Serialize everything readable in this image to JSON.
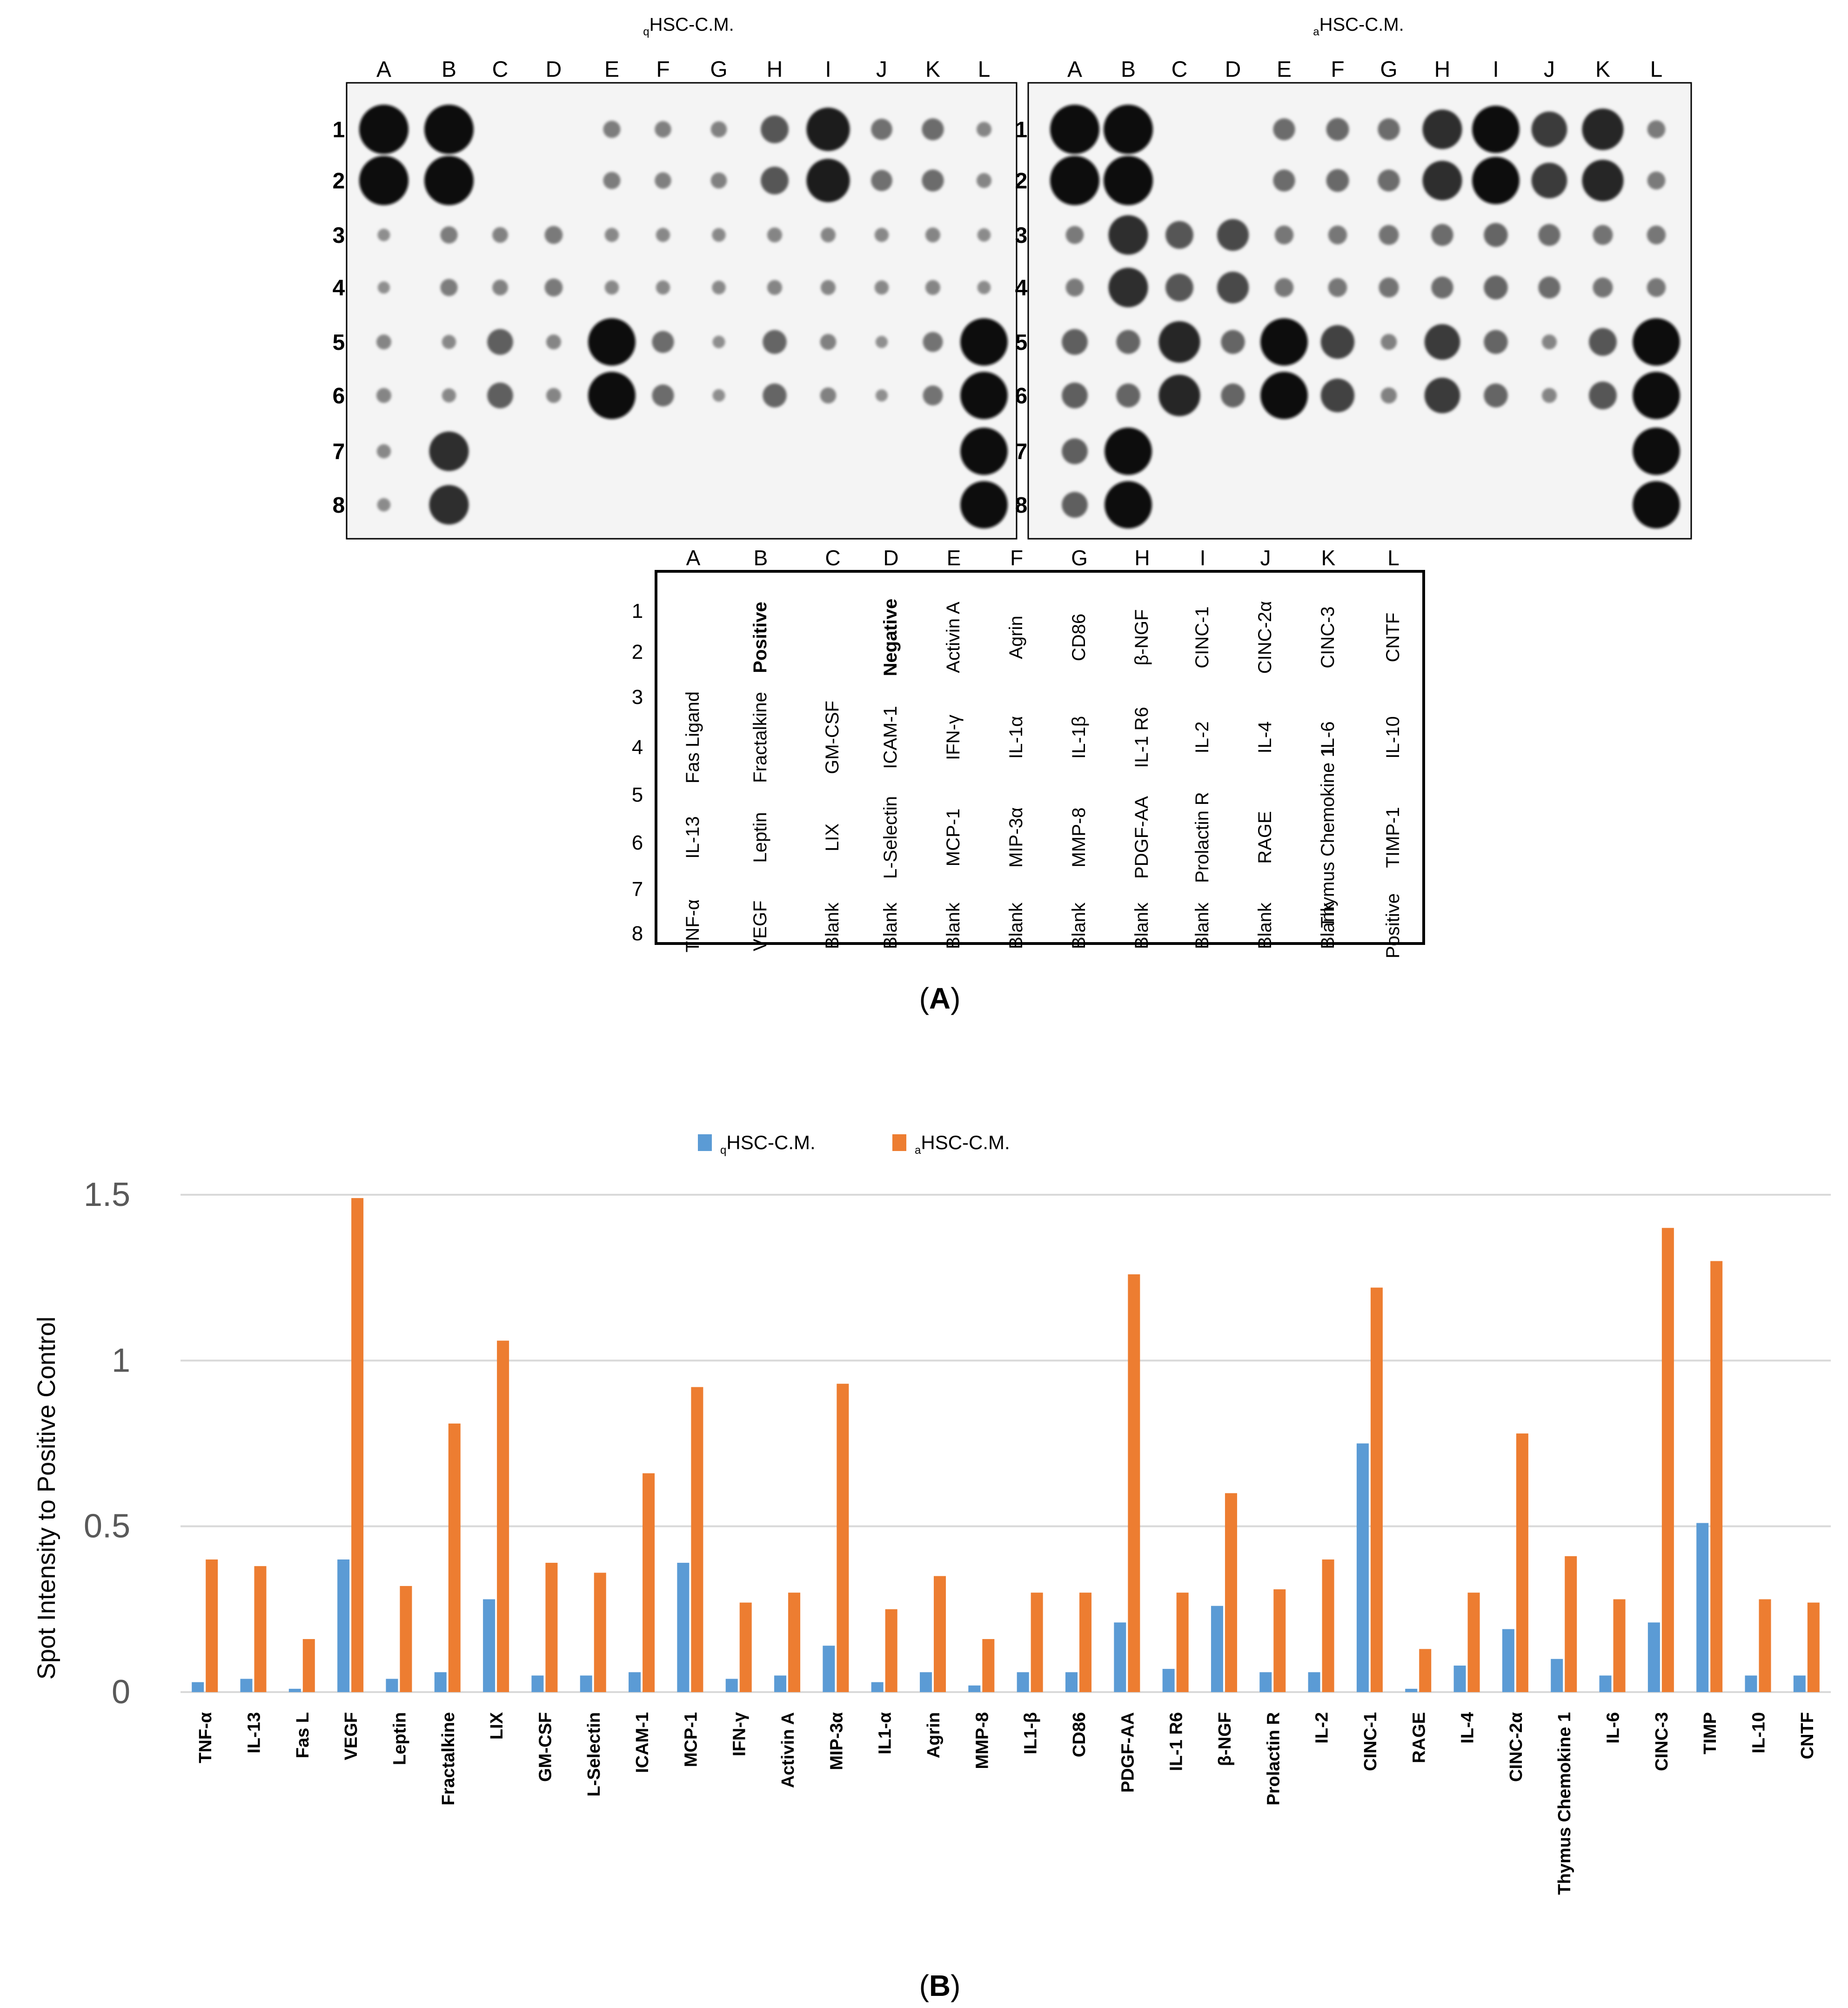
{
  "panel_a": {
    "panel_label": "A",
    "blots": [
      {
        "title": {
          "prefix": "q",
          "text": "HSC-C.M."
        }
      },
      {
        "title": {
          "prefix": "a",
          "text": "HSC-C.M."
        }
      }
    ],
    "column_letters": [
      "A",
      "B",
      "C",
      "D",
      "E",
      "F",
      "G",
      "H",
      "I",
      "J",
      "K",
      "L"
    ],
    "row_numbers": [
      "1",
      "2",
      "3",
      "4",
      "5",
      "6",
      "7",
      "8"
    ],
    "layout_map": {
      "column_letters": [
        "A",
        "B",
        "C",
        "D",
        "E",
        "F",
        "G",
        "H",
        "I",
        "J",
        "K",
        "L"
      ],
      "row_numbers": [
        "1",
        "2",
        "3",
        "4",
        "5",
        "6",
        "7",
        "8"
      ],
      "columns": [
        {
          "letter": "A",
          "labels": [
            "",
            "Fas Ligand",
            "IL-13",
            "TNF-α"
          ]
        },
        {
          "letter": "B",
          "labels": [
            "Positive",
            "Fractalkine",
            "Leptin",
            "VEGF"
          ]
        },
        {
          "letter": "C",
          "labels": [
            "",
            "GM-CSF",
            "LIX",
            "Blank"
          ]
        },
        {
          "letter": "D",
          "labels": [
            "Negative",
            "ICAM-1",
            "L-Selectin",
            "Blank"
          ]
        },
        {
          "letter": "E",
          "labels": [
            "Activin A",
            "IFN-γ",
            "MCP-1",
            "Blank"
          ]
        },
        {
          "letter": "F",
          "labels": [
            "Agrin",
            "IL-1α",
            "MIP-3α",
            "Blank"
          ]
        },
        {
          "letter": "G",
          "labels": [
            "CD86",
            "IL-1β",
            "MMP-8",
            "Blank"
          ]
        },
        {
          "letter": "H",
          "labels": [
            "β-NGF",
            "IL-1 R6",
            "PDGF-AA",
            "Blank"
          ]
        },
        {
          "letter": "I",
          "labels": [
            "CINC-1",
            "IL-2",
            "Prolactin R",
            "Blank"
          ]
        },
        {
          "letter": "J",
          "labels": [
            "CINC-2α",
            "IL-4",
            "RAGE",
            "Blank"
          ]
        },
        {
          "letter": "K",
          "labels": [
            "CINC-3",
            "IL-6",
            "Thymus Chemokine 1",
            "Blank"
          ]
        },
        {
          "letter": "L",
          "labels": [
            "CNTF",
            "IL-10",
            "TIMP-1",
            "Positive"
          ]
        }
      ]
    },
    "spot_intensity": {
      "qHSC": [
        [
          1.0,
          1.0,
          0,
          0,
          0.18,
          0.16,
          0.15,
          0.45,
          0.85,
          0.28,
          0.3,
          0.12
        ],
        [
          1.0,
          1.0,
          0,
          0,
          0.18,
          0.16,
          0.15,
          0.45,
          0.85,
          0.28,
          0.3,
          0.12
        ],
        [
          0.06,
          0.18,
          0.14,
          0.2,
          0.1,
          0.1,
          0.09,
          0.12,
          0.12,
          0.1,
          0.12,
          0.08
        ],
        [
          0.05,
          0.18,
          0.14,
          0.2,
          0.1,
          0.1,
          0.09,
          0.12,
          0.12,
          0.1,
          0.12,
          0.08
        ],
        [
          0.12,
          0.1,
          0.4,
          0.12,
          0.95,
          0.3,
          0.06,
          0.35,
          0.15,
          0.05,
          0.25,
          0.95
        ],
        [
          0.12,
          0.1,
          0.4,
          0.12,
          0.95,
          0.3,
          0.06,
          0.35,
          0.15,
          0.05,
          0.25,
          0.95
        ],
        [
          0.1,
          0.75,
          0,
          0,
          0,
          0,
          0,
          0,
          0,
          0,
          0,
          0.95
        ],
        [
          0.08,
          0.75,
          0,
          0,
          0,
          0,
          0,
          0,
          0,
          0,
          0,
          0.95
        ]
      ],
      "aHSC": [
        [
          1.0,
          1.0,
          0,
          0,
          0.3,
          0.32,
          0.3,
          0.75,
          0.95,
          0.65,
          0.8,
          0.2
        ],
        [
          1.0,
          1.0,
          0,
          0,
          0.3,
          0.32,
          0.3,
          0.75,
          0.95,
          0.65,
          0.8,
          0.2
        ],
        [
          0.2,
          0.75,
          0.45,
          0.55,
          0.22,
          0.22,
          0.25,
          0.3,
          0.35,
          0.3,
          0.25,
          0.22
        ],
        [
          0.2,
          0.75,
          0.45,
          0.55,
          0.22,
          0.22,
          0.25,
          0.3,
          0.35,
          0.3,
          0.25,
          0.22
        ],
        [
          0.4,
          0.35,
          0.8,
          0.35,
          0.95,
          0.6,
          0.15,
          0.65,
          0.35,
          0.12,
          0.45,
          0.95
        ],
        [
          0.4,
          0.35,
          0.8,
          0.35,
          0.95,
          0.6,
          0.15,
          0.65,
          0.35,
          0.12,
          0.45,
          0.95
        ],
        [
          0.4,
          0.95,
          0,
          0,
          0,
          0,
          0,
          0,
          0,
          0,
          0,
          0.95
        ],
        [
          0.4,
          0.95,
          0,
          0,
          0,
          0,
          0,
          0,
          0,
          0,
          0,
          0.95
        ]
      ]
    }
  },
  "panel_b": {
    "panel_label": "B"
  },
  "chart_data": {
    "type": "bar",
    "ylabel": "Spot Intensity to Positive Control",
    "xlabel": "",
    "ylim": [
      0,
      1.5
    ],
    "yticks": [
      "0",
      "0.5",
      "1",
      "1.5"
    ],
    "grid": true,
    "legend_placement": "top-center",
    "categories": [
      "TNF-α",
      "IL-13",
      "Fas L",
      "VEGF",
      "Leptin",
      "Fractalkine",
      "LIX",
      "GM-CSF",
      "L-Selectin",
      "ICAM-1",
      "MCP-1",
      "IFN-γ",
      "Activin A",
      "MIP-3α",
      "IL1-α",
      "Agrin",
      "MMP-8",
      "IL1-β",
      "CD86",
      "PDGF-AA",
      "IL-1 R6",
      "β-NGF",
      "Prolactin R",
      "IL-2",
      "CINC-1",
      "RAGE",
      "IL-4",
      "CINC-2α",
      "Thymus Chemokine 1",
      "IL-6",
      "CINC-3",
      "TIMP",
      "IL-10",
      "CNTF"
    ],
    "series": [
      {
        "name": "HSC-C.M.",
        "prefix": "q",
        "color": "#5b9bd5",
        "values": [
          0.03,
          0.04,
          0.01,
          0.4,
          0.04,
          0.06,
          0.28,
          0.05,
          0.05,
          0.06,
          0.39,
          0.04,
          0.05,
          0.14,
          0.03,
          0.06,
          0.02,
          0.06,
          0.06,
          0.21,
          0.07,
          0.26,
          0.06,
          0.06,
          0.75,
          0.01,
          0.08,
          0.19,
          0.1,
          0.05,
          0.21,
          0.51,
          0.05,
          0.05
        ]
      },
      {
        "name": "HSC-C.M.",
        "prefix": "a",
        "color": "#ed7d31",
        "values": [
          0.4,
          0.38,
          0.16,
          1.49,
          0.32,
          0.81,
          1.06,
          0.39,
          0.36,
          0.66,
          0.92,
          0.27,
          0.3,
          0.93,
          0.25,
          0.35,
          0.16,
          0.3,
          0.3,
          1.26,
          0.3,
          0.6,
          0.31,
          0.4,
          1.22,
          0.13,
          0.3,
          0.78,
          0.41,
          0.28,
          1.4,
          1.3,
          0.28,
          0.27
        ]
      }
    ]
  }
}
